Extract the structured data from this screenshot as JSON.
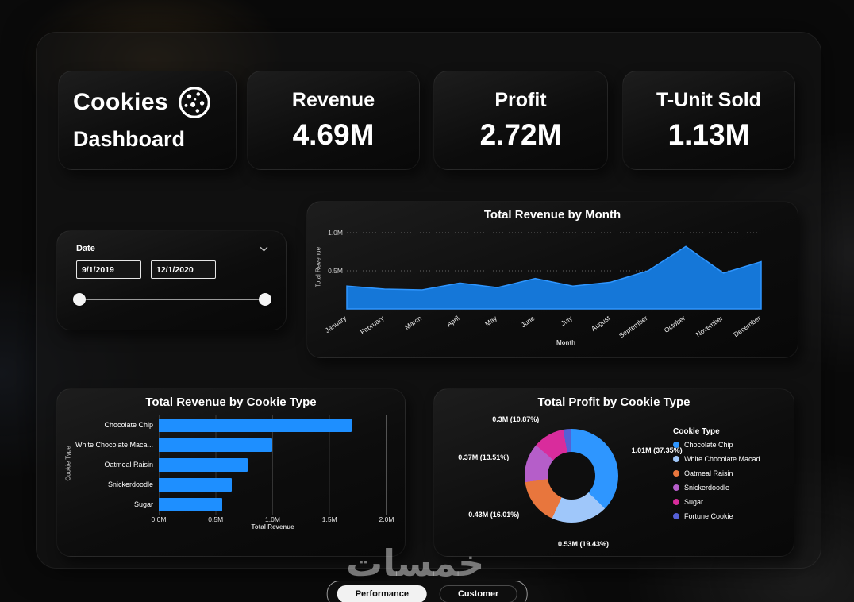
{
  "title_card": {
    "line1": "Cookies",
    "line2": "Dashboard"
  },
  "kpis": [
    {
      "label": "Revenue",
      "value": "4.69M"
    },
    {
      "label": "Profit",
      "value": "2.72M"
    },
    {
      "label": "T-Unit Sold",
      "value": "1.13M"
    }
  ],
  "date_slicer": {
    "label": "Date",
    "start_date": "9/1/2019",
    "end_date": "12/1/2020"
  },
  "tabs": [
    {
      "label": "Performance",
      "active": true
    },
    {
      "label": "Customer",
      "active": false
    }
  ],
  "watermark": "خمسات",
  "chart_data": [
    {
      "type": "area",
      "title": "Total Revenue by Month",
      "xlabel": "Month",
      "ylabel": "Total Revenue",
      "categories": [
        "January",
        "February",
        "March",
        "April",
        "May",
        "June",
        "July",
        "August",
        "September",
        "October",
        "November",
        "December"
      ],
      "values": [
        0.3,
        0.26,
        0.25,
        0.34,
        0.28,
        0.4,
        0.3,
        0.35,
        0.5,
        0.82,
        0.47,
        0.62
      ],
      "ylim": [
        0,
        1.0
      ],
      "yticks": [
        {
          "value": 0.5,
          "label": "0.5M"
        },
        {
          "value": 1.0,
          "label": "1.0M"
        }
      ],
      "grid": "dotted-horizontal",
      "legend_position": "none",
      "area_color": "#1577D8",
      "line_color": "#2F96FF"
    },
    {
      "type": "bar",
      "orientation": "horizontal",
      "title": "Total Revenue by Cookie Type",
      "xlabel": "Total Revenue",
      "ylabel": "Cookie Type",
      "categories": [
        "Chocolate Chip",
        "White Chocolate Maca...",
        "Oatmeal Raisin",
        "Snickerdoodle",
        "Sugar"
      ],
      "values": [
        1.7,
        1.0,
        0.78,
        0.64,
        0.56
      ],
      "xlim": [
        0,
        2.0
      ],
      "xticks": [
        "0.0M",
        "0.5M",
        "1.0M",
        "1.5M",
        "2.0M"
      ],
      "bar_color": "#1E8FFF",
      "grid": "vertical"
    },
    {
      "type": "pie",
      "title": "Total Profit by Cookie Type",
      "legend_title": "Cookie Type",
      "legend_position": "right",
      "slices": [
        {
          "label": "Chocolate Chip",
          "value": "1.01M",
          "pct": 37.35,
          "data_label": "1.01M (37.35%)",
          "color": "#2E96FF"
        },
        {
          "label": "White Chocolate Macad...",
          "value": "0.53M",
          "pct": 19.43,
          "data_label": "0.53M (19.43%)",
          "color": "#9FC7FA"
        },
        {
          "label": "Oatmeal Raisin",
          "value": "0.43M",
          "pct": 16.01,
          "data_label": "0.43M (16.01%)",
          "color": "#E8763D"
        },
        {
          "label": "Snickerdoodle",
          "value": "0.37M",
          "pct": 13.51,
          "data_label": "0.37M (13.51%)",
          "color": "#B55EC9"
        },
        {
          "label": "Sugar",
          "value": "0.3M",
          "pct": 10.87,
          "data_label": "0.3M (10.87%)",
          "color": "#D92C9C"
        },
        {
          "label": "Fortune Cookie",
          "value": "",
          "pct": 2.83,
          "data_label": "",
          "color": "#5560D6"
        }
      ]
    }
  ]
}
